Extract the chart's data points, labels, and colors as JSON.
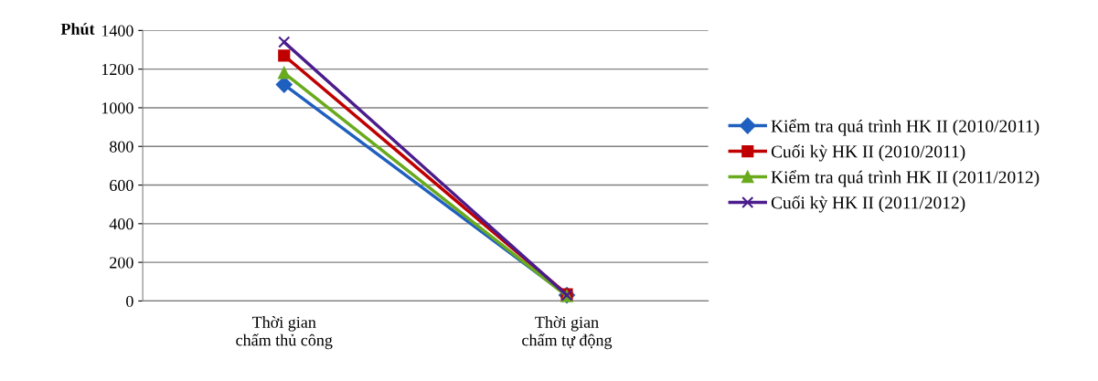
{
  "chart_data": {
    "type": "line",
    "ylabel": "Phút",
    "categories": [
      "Thời gian\nchấm thủ công",
      "Thời gian\nchấm tự động"
    ],
    "series": [
      {
        "name": "Kiểm tra quá trình HK II (2010/2011)",
        "color": "#1f5fbf",
        "marker": "diamond",
        "values": [
          1120,
          30
        ]
      },
      {
        "name": "Cuối kỳ HK II (2010/2011)",
        "color": "#c00000",
        "marker": "square",
        "values": [
          1270,
          35
        ]
      },
      {
        "name": "Kiểm tra quá trình HK II (2011/2012)",
        "color": "#6aaa1e",
        "marker": "triangle",
        "values": [
          1180,
          25
        ]
      },
      {
        "name": "Cuối kỳ HK II (2011/2012)",
        "color": "#4b1c8c",
        "marker": "cross",
        "values": [
          1340,
          30
        ]
      }
    ],
    "ylim": [
      0,
      1400
    ],
    "yticks": [
      0,
      200,
      400,
      600,
      800,
      1000,
      1200,
      1400
    ],
    "grid": "y",
    "legend": "right"
  }
}
